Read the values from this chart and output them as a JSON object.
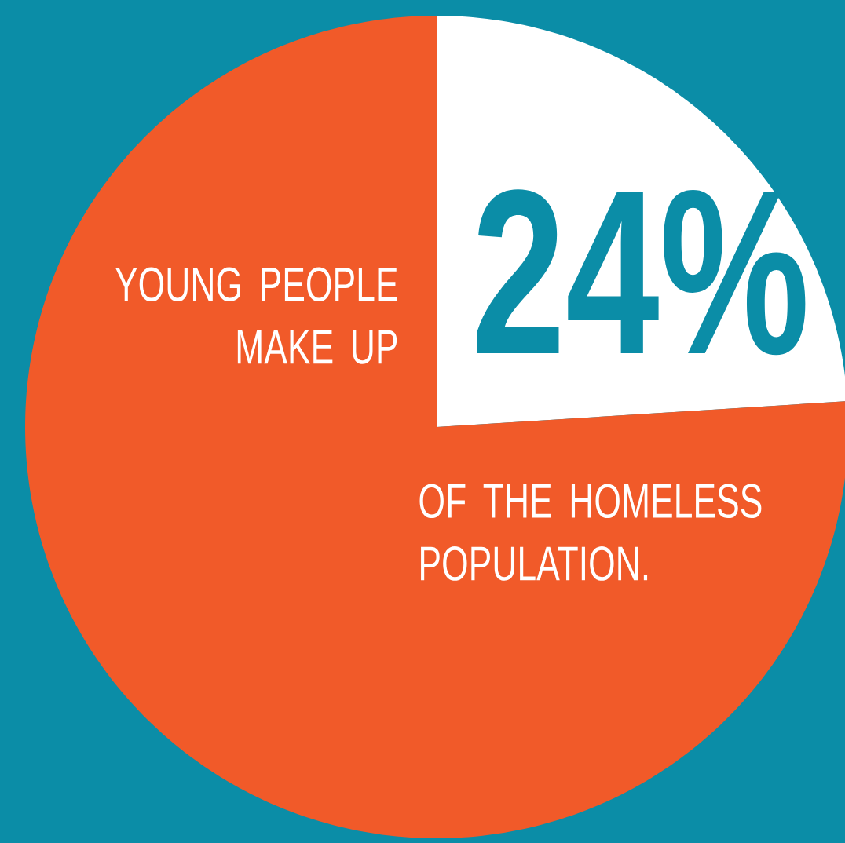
{
  "chart_data": {
    "type": "pie",
    "categories": [
      null,
      null
    ],
    "values": [
      24,
      76
    ],
    "colors": [
      "#ffffff",
      "#f15a29"
    ],
    "value_labels": [
      "24%",
      null
    ],
    "annotations": [
      "YOUNG PEOPLE MAKE UP",
      "OF THE HOMELESS POPULATION."
    ]
  }
}
